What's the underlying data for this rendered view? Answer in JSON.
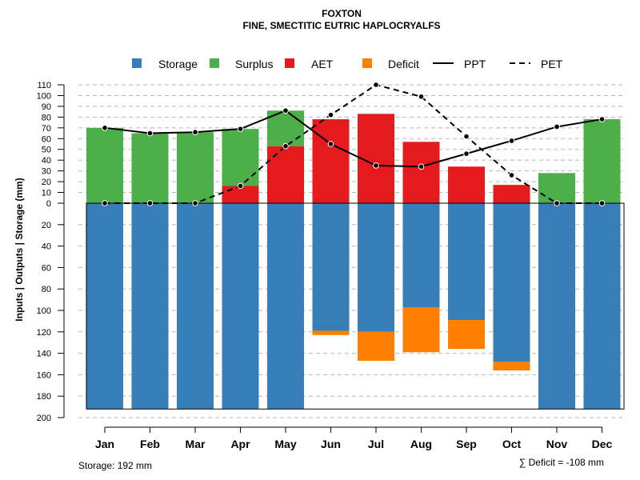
{
  "chart_data": {
    "type": "bar",
    "title": "FOXTON",
    "subtitle": "FINE, SMECTITIC EUTRIC HAPLOCRYALFS",
    "ylabel_parts": [
      "Inputs",
      "Outputs",
      "Storage",
      "(mm)"
    ],
    "ylabel_sep": "|",
    "categories": [
      "Jan",
      "Feb",
      "Mar",
      "Apr",
      "May",
      "Jun",
      "Jul",
      "Aug",
      "Sep",
      "Oct",
      "Nov",
      "Dec"
    ],
    "y_upper_ticks": [
      "110",
      "100",
      "90",
      "80",
      "70",
      "60",
      "50",
      "40",
      "30",
      "20",
      "10",
      "0"
    ],
    "y_lower_ticks": [
      "20",
      "40",
      "60",
      "80",
      "100",
      "120",
      "140",
      "160",
      "180",
      "200"
    ],
    "ylim_upper": [
      0,
      110
    ],
    "ylim_lower": [
      0,
      200
    ],
    "series": [
      {
        "name": "Storage",
        "color": "#377eb8",
        "values": [
          192,
          192,
          192,
          192,
          192,
          119,
          120,
          97,
          109,
          148,
          192,
          192
        ]
      },
      {
        "name": "Surplus",
        "color": "#4daf4a",
        "values": [
          70,
          65,
          66,
          53,
          33,
          0,
          0,
          0,
          0,
          0,
          28,
          78
        ]
      },
      {
        "name": "AET",
        "color": "#e41a1c",
        "values": [
          0,
          0,
          0,
          16,
          53,
          78,
          83,
          57,
          34,
          17,
          0,
          0
        ]
      },
      {
        "name": "Deficit",
        "color": "#ff7f00",
        "values": [
          0,
          0,
          0,
          0,
          0,
          4,
          27,
          42,
          27,
          8,
          0,
          0
        ]
      },
      {
        "name": "PPT",
        "line": "solid",
        "values": [
          70,
          65,
          66,
          69,
          86,
          55,
          35,
          34,
          46,
          58,
          71,
          78
        ]
      },
      {
        "name": "PET",
        "line": "dashed",
        "values": [
          0,
          0,
          0,
          16,
          53,
          82,
          110,
          99,
          62,
          26,
          0,
          0
        ]
      }
    ],
    "legend_labels": [
      "Storage",
      "Surplus",
      "AET",
      "Deficit",
      "PPT",
      "PET"
    ],
    "footer_left": "Storage: 192 mm",
    "footer_right": "∑ Deficit = -108 mm"
  }
}
